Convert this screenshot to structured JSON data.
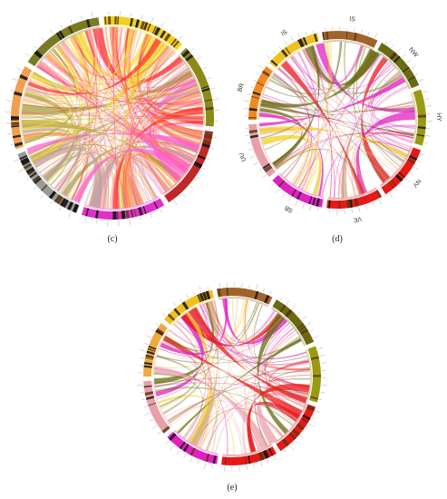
{
  "panels": [
    {
      "id": "c",
      "caption": "(c)",
      "ring": [
        {
          "color": "#f0d020",
          "bands": 18
        },
        {
          "color": "#8a8a1a",
          "bands": 6
        },
        {
          "color": "#c0282a",
          "bands": 8
        },
        {
          "color": "#e030c8",
          "bands": 12
        },
        {
          "color": "#9a9a9a",
          "bands": 30
        },
        {
          "color": "#f0a050",
          "bands": 10
        },
        {
          "color": "#7a7a22",
          "bands": 8
        }
      ],
      "segment_labels": [],
      "ribbon_colors": [
        "#f5e040",
        "#ff3030",
        "#ff60d0",
        "#ff9060",
        "#c0a0a0",
        "#a0a040"
      ]
    },
    {
      "id": "d",
      "caption": "(d)",
      "ring": [
        {
          "color": "#a0642a",
          "bands": 4
        },
        {
          "color": "#6a6a10",
          "bands": 6
        },
        {
          "color": "#9a9a12",
          "bands": 3
        },
        {
          "color": "#e81818",
          "bands": 8
        },
        {
          "color": "#e81818",
          "bands": 10
        },
        {
          "color": "#e020c0",
          "bands": 6
        },
        {
          "color": "#e8a0a8",
          "bands": 5
        },
        {
          "color": "#f08a20",
          "bands": 6
        },
        {
          "color": "#f0c020",
          "bands": 8
        }
      ],
      "segment_labels": [
        "IS",
        "NW",
        "HY",
        "NV",
        "VE",
        "SB",
        "UU",
        "BR",
        "IS"
      ],
      "ribbon_colors": [
        "#f5d020",
        "#6a6a10",
        "#e020c0",
        "#e81818",
        "#e8a0a8",
        "#d0b080"
      ]
    },
    {
      "id": "e",
      "caption": "(e)",
      "ring": [
        {
          "color": "#a0642a",
          "bands": 4
        },
        {
          "color": "#6a6a10",
          "bands": 6
        },
        {
          "color": "#9a9a12",
          "bands": 3
        },
        {
          "color": "#e81818",
          "bands": 8
        },
        {
          "color": "#e81818",
          "bands": 10
        },
        {
          "color": "#e020c0",
          "bands": 6
        },
        {
          "color": "#e8a0a8",
          "bands": 5
        },
        {
          "color": "#f0a840",
          "bands": 10
        },
        {
          "color": "#f0c020",
          "bands": 8
        }
      ],
      "segment_labels": [],
      "ribbon_colors": [
        "#f5d020",
        "#6a6a10",
        "#e020c0",
        "#e81818",
        "#e8a0a8",
        "#d0b080"
      ]
    }
  ]
}
